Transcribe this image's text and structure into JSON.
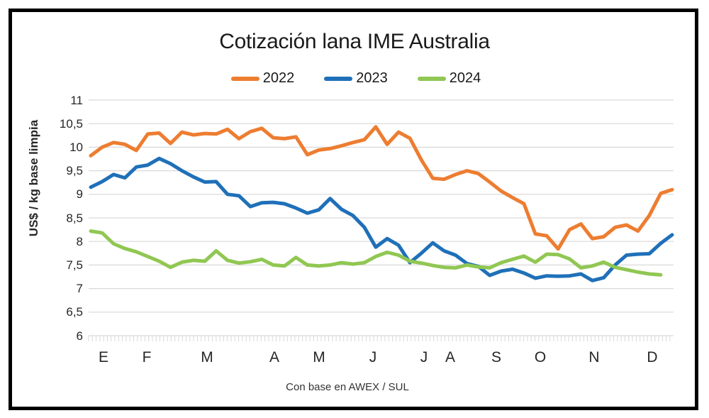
{
  "window": {
    "background": "#FFFFFF",
    "frame_color": "#000000"
  },
  "chart_data": {
    "type": "line",
    "title": "Cotización lana IME Australia",
    "ylabel": "US$ / kg base limpia",
    "footnote": "Con base en AWEX / SUL",
    "ylim": [
      6,
      11
    ],
    "ytick_step": 0.5,
    "ytick_labels": [
      "11",
      "10,5",
      "10",
      "9,5",
      "9",
      "8,5",
      "8",
      "7,5",
      "7",
      "6,5",
      "6"
    ],
    "x_month_labels": [
      "E",
      "F",
      "M",
      "A",
      "M",
      "J",
      "J",
      "A",
      "S",
      "O",
      "N",
      "D"
    ],
    "x_unit": "semanas",
    "grid": true,
    "legend_position": "top",
    "gridline_color": "#D9D9D9",
    "series": [
      {
        "name": "2022",
        "color": "#ED7D31",
        "values": [
          9.82,
          10.0,
          10.1,
          10.06,
          9.93,
          10.28,
          10.3,
          10.08,
          10.32,
          10.26,
          10.29,
          10.28,
          10.38,
          10.18,
          10.33,
          10.4,
          10.2,
          10.18,
          10.22,
          9.84,
          9.94,
          9.97,
          10.03,
          10.1,
          10.16,
          10.43,
          10.06,
          10.32,
          10.19,
          9.73,
          9.34,
          9.32,
          9.42,
          9.5,
          9.44,
          9.26,
          9.07,
          8.93,
          8.8,
          8.16,
          8.12,
          7.84,
          8.25,
          8.37,
          8.06,
          8.1,
          8.3,
          8.35,
          8.22,
          8.55,
          9.02,
          9.1
        ]
      },
      {
        "name": "2023",
        "color": "#1F70B8",
        "values": [
          9.15,
          9.27,
          9.42,
          9.35,
          9.58,
          9.62,
          9.76,
          9.65,
          9.5,
          9.37,
          9.26,
          9.27,
          9.0,
          8.97,
          8.74,
          8.82,
          8.83,
          8.8,
          8.71,
          8.6,
          8.67,
          8.91,
          8.68,
          8.55,
          8.3,
          7.88,
          8.06,
          7.92,
          7.55,
          7.75,
          7.97,
          7.8,
          7.71,
          7.53,
          7.47,
          7.28,
          7.37,
          7.41,
          7.33,
          7.22,
          7.27,
          7.26,
          7.27,
          7.31,
          7.17,
          7.23,
          7.5,
          7.71,
          7.73,
          7.74,
          7.96,
          8.14
        ]
      },
      {
        "name": "2024",
        "color": "#90C752",
        "values": [
          8.22,
          8.18,
          7.95,
          7.85,
          7.78,
          7.68,
          7.58,
          7.45,
          7.56,
          7.6,
          7.58,
          7.8,
          7.6,
          7.54,
          7.57,
          7.62,
          7.5,
          7.48,
          7.66,
          7.5,
          7.48,
          7.5,
          7.55,
          7.52,
          7.55,
          7.68,
          7.77,
          7.71,
          7.58,
          7.54,
          7.49,
          7.45,
          7.44,
          7.5,
          7.46,
          7.44,
          7.55,
          7.62,
          7.69,
          7.56,
          7.73,
          7.72,
          7.63,
          7.44,
          7.48,
          7.56,
          7.45,
          7.4,
          7.35,
          7.31,
          7.29
        ]
      }
    ]
  }
}
